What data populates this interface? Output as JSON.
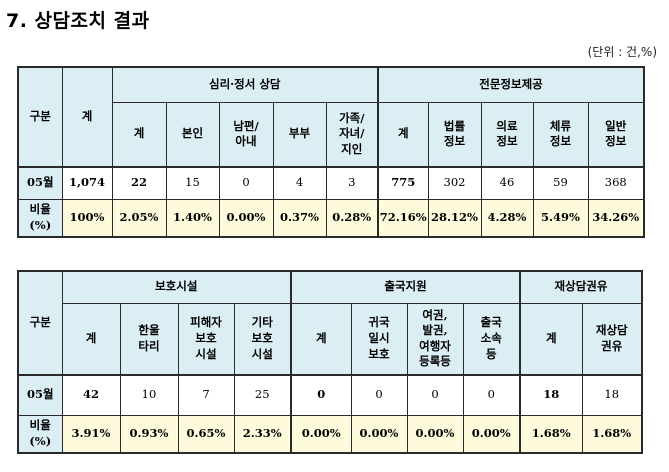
{
  "title": "7. 상담조치 결과",
  "unit": "(단위 : 건,%)",
  "table1": {
    "col_group_label": "구분",
    "total_label": "계",
    "group1": "심리·정서 상담",
    "group2": "전문정보제공",
    "sub1": [
      "계",
      "본인",
      "남편/\n아내",
      "부부",
      "가족/\n자녀/\n지인"
    ],
    "sub2": [
      "계",
      "법률\n정보",
      "의료\n정보",
      "체류\n정보",
      "일반\n정보"
    ],
    "row1_label": "05월",
    "row1": [
      "1,074",
      "22",
      "15",
      "0",
      "4",
      "3",
      "775",
      "302",
      "46",
      "59",
      "368"
    ],
    "row2_label": "비율\n(%)",
    "row2": [
      "100%",
      "2.05%",
      "1.40%",
      "0.00%",
      "0.37%",
      "0.28%",
      "72.16%",
      "28.12%",
      "4.28%",
      "5.49%",
      "34.26%"
    ]
  },
  "table2": {
    "col_group_label": "구분",
    "group1": "보호시설",
    "group2": "출국지원",
    "group3": "재상담권유",
    "sub1": [
      "계",
      "한울\n타리",
      "피해자\n보호\n시설",
      "기타\n보호\n시설"
    ],
    "sub2": [
      "계",
      "귀국\n일시\n보호",
      "여권,\n발권,\n여행자\n등록등",
      "출국\n소속\n등"
    ],
    "sub3": [
      "계",
      "재상담\n권유"
    ],
    "row1_label": "05월",
    "row1": [
      "42",
      "10",
      "7",
      "25",
      "0",
      "0",
      "0",
      "0",
      "18",
      "18"
    ],
    "row2_label": "비율\n(%)",
    "row2": [
      "3.91%",
      "0.93%",
      "0.65%",
      "2.33%",
      "0.00%",
      "0.00%",
      "0.00%",
      "0.00%",
      "1.68%",
      "1.68%"
    ]
  }
}
